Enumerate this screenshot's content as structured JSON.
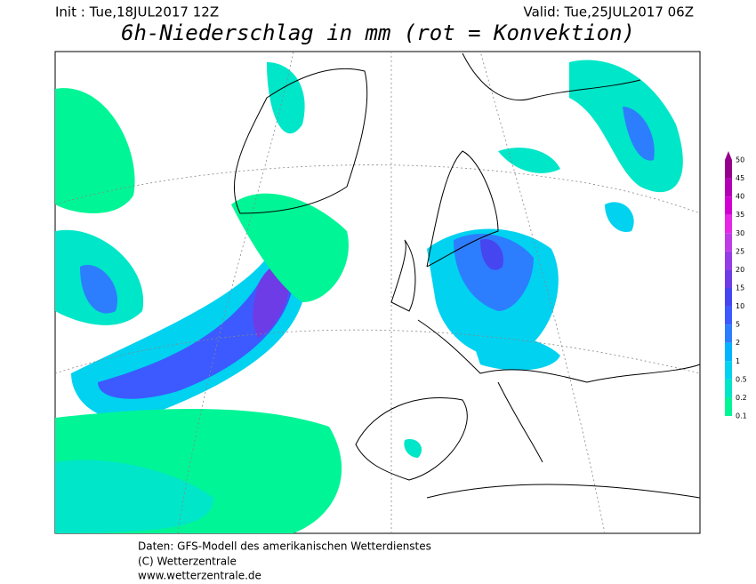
{
  "header": {
    "init": "Init : Tue,18JUL2017 12Z",
    "valid": "Valid: Tue,25JUL2017 06Z",
    "title": "6h-Niederschlag in mm (rot = Konvektion)"
  },
  "legend": {
    "labels": [
      "50",
      "45",
      "40",
      "35",
      "30",
      "25",
      "20",
      "15",
      "10",
      "5",
      "2",
      "1",
      "0.5",
      "0.2",
      "0.1"
    ],
    "colors": [
      "#96008c",
      "#b400b4",
      "#d200d2",
      "#e628e6",
      "#be3ce6",
      "#963ce6",
      "#6e3ce6",
      "#4646f0",
      "#3c5aff",
      "#2d7dff",
      "#00b4ff",
      "#00d2f0",
      "#00e6c8",
      "#00f596"
    ]
  },
  "footer": {
    "lines": [
      "Daten: GFS-Modell des amerikanischen Wetterdienstes",
      "(C) Wetterzentrale",
      "www.wetterzentrale.de"
    ]
  }
}
